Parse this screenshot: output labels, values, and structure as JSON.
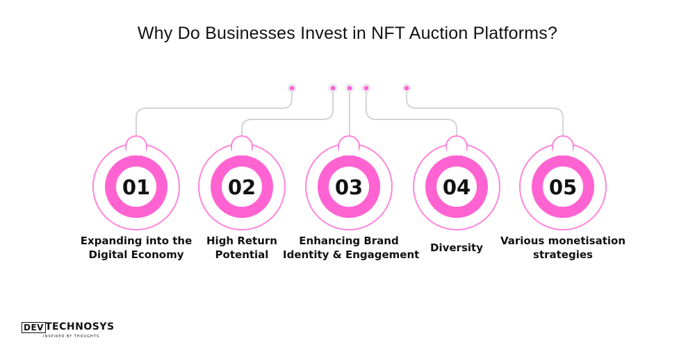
{
  "title": "Why Do Businesses Invest in NFT Auction Platforms?",
  "colors": {
    "accent": "#ff63d2",
    "connector": "#d4d4d4",
    "outer_ring": "#ff84dc"
  },
  "items": [
    {
      "number": "01",
      "lines": [
        "Expanding into the",
        "Digital Economy"
      ]
    },
    {
      "number": "02",
      "lines": [
        "High Return",
        "Potential"
      ]
    },
    {
      "number": "03",
      "lines": [
        "Enhancing Brand",
        "Identity & Engagement"
      ]
    },
    {
      "number": "04",
      "lines": [
        "Diversity"
      ]
    },
    {
      "number": "05",
      "lines": [
        "Various monetisation",
        "strategies"
      ]
    }
  ],
  "logo": {
    "left_word": "DEV",
    "right_word": "TECHNOSYS",
    "tagline": "INSPIRED BY THOUGHTS"
  }
}
